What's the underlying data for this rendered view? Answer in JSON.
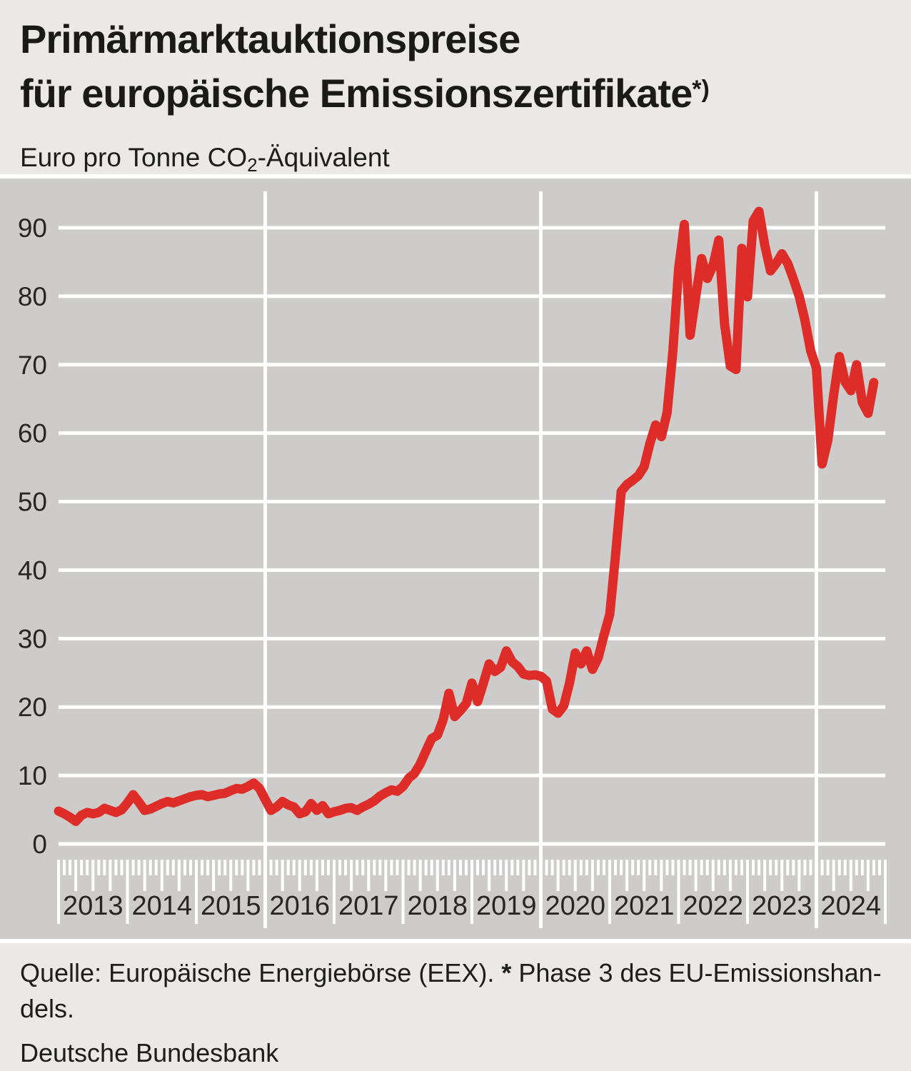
{
  "header": {
    "title_line1": "Primärmarktauktionspreise",
    "title_line2": "für europäische Emissionszertifikate",
    "title_note_marker": "*)",
    "unit_label_pre": "Euro pro Tonne CO",
    "unit_label_sub": "2",
    "unit_label_post": "-Äquivalent"
  },
  "chart_data": {
    "type": "line",
    "title": "Primärmarktauktionspreise für europäische Emissionszertifikate",
    "ylabel": "Euro pro Tonne CO2-Äquivalent",
    "xlabel": "",
    "frequency": "monthly",
    "x_start": "2013-01",
    "x_end": "2024-11",
    "x_axis_span_years": [
      2013,
      2025
    ],
    "x_tick_years": [
      "2013",
      "2014",
      "2015",
      "2016",
      "2017",
      "2018",
      "2019",
      "2020",
      "2021",
      "2022",
      "2023",
      "2024"
    ],
    "x_gridline_years": [
      2016,
      2020,
      2024
    ],
    "ytick_labels": [
      "0",
      "10",
      "20",
      "30",
      "40",
      "50",
      "60",
      "70",
      "80",
      "90"
    ],
    "yticks": [
      0,
      10,
      20,
      30,
      40,
      50,
      60,
      70,
      80,
      90
    ],
    "ylim": [
      0,
      95
    ],
    "grid": true,
    "legend": "none",
    "line_color": "#de2d28",
    "plot_bg_color": "#cdccca",
    "grid_color": "#ffffff",
    "values": [
      4.8,
      4.4,
      3.9,
      3.3,
      4.2,
      4.6,
      4.4,
      4.6,
      5.2,
      4.9,
      4.6,
      5.0,
      6.0,
      7.2,
      6.1,
      4.9,
      5.1,
      5.5,
      5.9,
      6.2,
      6.0,
      6.3,
      6.6,
      6.9,
      7.1,
      7.2,
      6.9,
      7.1,
      7.3,
      7.4,
      7.8,
      8.1,
      8.0,
      8.4,
      8.9,
      8.1,
      6.5,
      4.9,
      5.4,
      6.2,
      5.7,
      5.4,
      4.4,
      4.7,
      5.9,
      4.9,
      5.6,
      4.4,
      4.7,
      4.9,
      5.2,
      5.3,
      4.9,
      5.4,
      5.8,
      6.3,
      7.0,
      7.5,
      7.9,
      7.7,
      8.4,
      9.6,
      10.3,
      11.7,
      13.6,
      15.4,
      15.9,
      18.2,
      22.0,
      18.6,
      19.5,
      20.5,
      23.5,
      20.8,
      23.5,
      26.3,
      25.2,
      25.8,
      28.2,
      26.6,
      25.9,
      24.8,
      24.6,
      24.7,
      24.5,
      23.8,
      19.7,
      19.1,
      20.2,
      23.5,
      27.9,
      26.3,
      28.2,
      25.5,
      27.2,
      30.5,
      33.5,
      42.0,
      51.5,
      52.5,
      53.1,
      53.8,
      55.1,
      58.5,
      61.2,
      59.5,
      63.0,
      72.0,
      84.0,
      90.5,
      74.3,
      80.0,
      85.5,
      82.6,
      84.5,
      88.2,
      76.0,
      69.8,
      69.3,
      87.0,
      79.9,
      91.0,
      92.4,
      87.5,
      83.7,
      84.8,
      86.2,
      84.8,
      82.5,
      80.0,
      76.5,
      72.0,
      69.5,
      55.5,
      59.0,
      65.5,
      71.2,
      67.5,
      66.2,
      70.0,
      64.5,
      62.9,
      67.4
    ]
  },
  "footer": {
    "source_pre": "Quelle: Europäische Energiebörse (EEX). ",
    "source_marker": "*",
    "source_post_line1": " Phase 3 des EU-Emissionshan-",
    "source_post_line2": "dels.",
    "publisher": "Deutsche Bundesbank"
  },
  "colors": {
    "page_bg": "#eae9e7",
    "plot_bg": "#cdccca",
    "line_red": "#de2d28",
    "grid_white": "#ffffff",
    "text": "#1d1d1b"
  }
}
